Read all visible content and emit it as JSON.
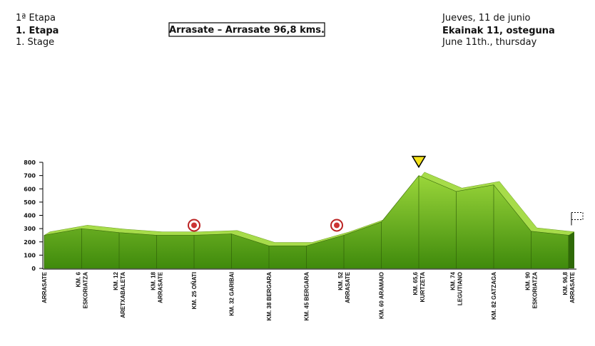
{
  "header": {
    "left": [
      "1ª Etapa",
      "1. Etapa",
      "1. Stage"
    ],
    "title": "Arrasate – Arrasate  96,8 kms.",
    "right": [
      "Jueves, 11 de junio",
      "Ekainak 11, osteguna",
      "June 11th., thursday"
    ]
  },
  "chart_data": {
    "type": "area",
    "categories": [
      [
        "ARRASATE"
      ],
      [
        "KM. 6",
        "ESKORIATZA"
      ],
      [
        "KM. 12",
        "ARETXABALETA"
      ],
      [
        "KM. 18",
        "ARRASATE"
      ],
      [
        "KM. 25  OÑATI"
      ],
      [
        "KM. 32  GARIBAI"
      ],
      [
        "KM. 38  BERGARA"
      ],
      [
        "KM. 45  BERGARA"
      ],
      [
        "KM. 52",
        "ARRASATE"
      ],
      [
        "KM. 60  ARAMAIO"
      ],
      [
        "KM. 65,6",
        "KURTZETA"
      ],
      [
        "KM. 74",
        "LEGUTIANO"
      ],
      [
        "KM. 82  GATZAGA"
      ],
      [
        "KM. 90",
        "ESKORIATZA"
      ],
      [
        "KM. 96,8",
        "ARRASATE"
      ]
    ],
    "values": [
      250,
      300,
      270,
      250,
      250,
      260,
      170,
      170,
      250,
      350,
      700,
      580,
      630,
      280,
      250
    ],
    "color": "#6fb01e",
    "ylim": [
      0,
      800
    ],
    "yticks": [
      0,
      100,
      200,
      300,
      400,
      500,
      600,
      700,
      800
    ]
  }
}
